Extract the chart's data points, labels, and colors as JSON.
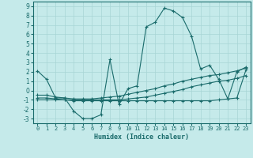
{
  "xlabel": "Humidex (Indice chaleur)",
  "background_color": "#c5eaea",
  "grid_color": "#a8d5d5",
  "line_color": "#1a6b6b",
  "xlim": [
    -0.5,
    23.5
  ],
  "ylim": [
    -3.5,
    9.5
  ],
  "yticks": [
    -3,
    -2,
    -1,
    0,
    1,
    2,
    3,
    4,
    5,
    6,
    7,
    8,
    9
  ],
  "xticks": [
    0,
    1,
    2,
    3,
    4,
    5,
    6,
    7,
    8,
    9,
    10,
    11,
    12,
    13,
    14,
    15,
    16,
    17,
    18,
    19,
    20,
    21,
    22,
    23
  ],
  "line1_x": [
    0,
    1,
    2,
    3,
    4,
    5,
    6,
    7,
    8,
    9,
    10,
    11,
    12,
    13,
    14,
    15,
    16,
    17,
    18,
    19,
    20,
    21,
    22,
    23
  ],
  "line1_y": [
    2.1,
    1.2,
    -0.8,
    -0.8,
    -2.2,
    -3.0,
    -3.0,
    -2.6,
    3.3,
    -1.5,
    0.2,
    0.5,
    6.8,
    7.3,
    8.8,
    8.5,
    7.8,
    5.8,
    2.3,
    2.7,
    1.2,
    -0.9,
    2.0,
    2.5
  ],
  "line2_x": [
    0,
    1,
    2,
    3,
    4,
    5,
    6,
    7,
    8,
    9,
    10,
    11,
    12,
    13,
    14,
    15,
    16,
    17,
    18,
    19,
    20,
    21,
    22,
    23
  ],
  "line2_y": [
    -0.5,
    -0.5,
    -0.7,
    -0.8,
    -0.9,
    -0.9,
    -0.9,
    -0.8,
    -0.7,
    -0.6,
    -0.4,
    -0.2,
    0.0,
    0.2,
    0.5,
    0.7,
    1.0,
    1.2,
    1.4,
    1.6,
    1.7,
    1.9,
    2.1,
    2.4
  ],
  "line3_x": [
    0,
    1,
    2,
    3,
    4,
    5,
    6,
    7,
    8,
    9,
    10,
    11,
    12,
    13,
    14,
    15,
    16,
    17,
    18,
    19,
    20,
    21,
    22,
    23
  ],
  "line3_y": [
    -0.8,
    -0.8,
    -0.9,
    -1.0,
    -1.0,
    -1.0,
    -1.0,
    -1.0,
    -1.0,
    -1.0,
    -0.9,
    -0.8,
    -0.7,
    -0.5,
    -0.3,
    -0.1,
    0.1,
    0.4,
    0.6,
    0.8,
    1.0,
    1.1,
    1.3,
    1.6
  ],
  "line4_x": [
    0,
    1,
    2,
    3,
    4,
    5,
    6,
    7,
    8,
    9,
    10,
    11,
    12,
    13,
    14,
    15,
    16,
    17,
    18,
    19,
    20,
    21,
    22,
    23
  ],
  "line4_y": [
    -1.0,
    -1.0,
    -1.0,
    -1.0,
    -1.1,
    -1.1,
    -1.1,
    -1.1,
    -1.1,
    -1.1,
    -1.1,
    -1.1,
    -1.1,
    -1.1,
    -1.1,
    -1.1,
    -1.1,
    -1.1,
    -1.1,
    -1.1,
    -1.0,
    -0.9,
    -0.8,
    2.2
  ]
}
